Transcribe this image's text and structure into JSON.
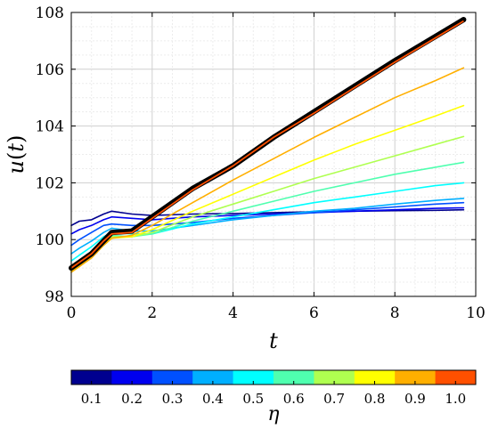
{
  "chart_data": {
    "type": "line",
    "xlabel": "t",
    "ylabel": "u(t)",
    "xlim": [
      0,
      10
    ],
    "ylim": [
      98,
      108
    ],
    "xticks": [
      0,
      2,
      4,
      6,
      8,
      10
    ],
    "yticks": [
      98,
      100,
      102,
      104,
      106,
      108
    ],
    "grid": true,
    "colorbar": {
      "label": "η",
      "ticks": [
        "0.1",
        "0.2",
        "0.3",
        "0.4",
        "0.5",
        "0.6",
        "0.7",
        "0.8",
        "0.9",
        "1.0"
      ],
      "colors": [
        "#00008f",
        "#0000ef",
        "#0050ff",
        "#00afff",
        "#00ffff",
        "#4fffaf",
        "#afff50",
        "#ffff00",
        "#ffaf00",
        "#ff5000"
      ],
      "placement": "bottom"
    },
    "series": [
      {
        "eta": 0.1,
        "color": "#00008f",
        "x": [
          0,
          0.2,
          0.5,
          0.8,
          1.0,
          1.5,
          2.0,
          3.0,
          4.0,
          5.0,
          6.0,
          7.0,
          8.0,
          9.0,
          9.7
        ],
        "y": [
          100.5,
          100.65,
          100.7,
          100.9,
          101.0,
          100.9,
          100.85,
          100.9,
          100.92,
          100.95,
          100.98,
          101.0,
          101.02,
          101.03,
          101.05
        ]
      },
      {
        "eta": 0.2,
        "color": "#0000ef",
        "x": [
          0,
          0.2,
          0.5,
          0.8,
          1.0,
          1.5,
          2.0,
          3.0,
          4.0,
          5.0,
          6.0,
          7.0,
          8.0,
          9.0,
          9.7
        ],
        "y": [
          100.2,
          100.35,
          100.5,
          100.7,
          100.8,
          100.75,
          100.7,
          100.8,
          100.85,
          100.9,
          100.95,
          101.0,
          101.05,
          101.1,
          101.12
        ]
      },
      {
        "eta": 0.3,
        "color": "#0050ff",
        "x": [
          0,
          0.2,
          0.5,
          0.8,
          1.0,
          1.5,
          2.0,
          3.0,
          4.0,
          5.0,
          6.0,
          7.0,
          8.0,
          9.0,
          9.7
        ],
        "y": [
          99.8,
          100.0,
          100.25,
          100.5,
          100.55,
          100.5,
          100.5,
          100.6,
          100.75,
          100.85,
          100.95,
          101.05,
          101.15,
          101.25,
          101.3
        ]
      },
      {
        "eta": 0.4,
        "color": "#00afff",
        "x": [
          0,
          0.2,
          0.5,
          0.8,
          1.0,
          1.5,
          2.0,
          3.0,
          4.0,
          5.0,
          6.0,
          7.0,
          8.0,
          9.0,
          9.7
        ],
        "y": [
          99.5,
          99.7,
          99.95,
          100.25,
          100.4,
          100.3,
          100.3,
          100.5,
          100.7,
          100.85,
          101.0,
          101.1,
          101.25,
          101.38,
          101.45
        ]
      },
      {
        "eta": 0.5,
        "color": "#00ffff",
        "x": [
          0,
          0.2,
          0.5,
          0.8,
          1.0,
          1.5,
          2.0,
          3.0,
          4.0,
          5.0,
          6.0,
          7.0,
          8.0,
          9.0,
          9.7
        ],
        "y": [
          99.25,
          99.45,
          99.75,
          100.1,
          100.25,
          100.2,
          100.2,
          100.55,
          100.8,
          101.05,
          101.3,
          101.5,
          101.7,
          101.9,
          102.0
        ]
      },
      {
        "eta": 0.6,
        "color": "#4fffaf",
        "x": [
          0,
          0.2,
          0.5,
          0.8,
          1.0,
          1.5,
          2.0,
          3.0,
          4.0,
          5.0,
          6.0,
          7.0,
          8.0,
          9.0,
          9.7
        ],
        "y": [
          99.05,
          99.25,
          99.55,
          99.95,
          100.15,
          100.1,
          100.2,
          100.65,
          101.0,
          101.35,
          101.7,
          102.0,
          102.3,
          102.55,
          102.72
        ]
      },
      {
        "eta": 0.7,
        "color": "#afff50",
        "x": [
          0,
          0.2,
          0.5,
          0.8,
          1.0,
          1.5,
          2.0,
          3.0,
          4.0,
          5.0,
          6.0,
          7.0,
          8.0,
          9.0,
          9.7
        ],
        "y": [
          98.95,
          99.15,
          99.45,
          99.85,
          100.1,
          100.1,
          100.25,
          100.8,
          101.25,
          101.7,
          102.15,
          102.55,
          102.95,
          103.35,
          103.63
        ]
      },
      {
        "eta": 0.8,
        "color": "#ffff00",
        "x": [
          0,
          0.2,
          0.5,
          0.8,
          1.0,
          1.5,
          2.0,
          3.0,
          4.0,
          5.0,
          6.0,
          7.0,
          8.0,
          9.0,
          9.7
        ],
        "y": [
          98.9,
          99.1,
          99.4,
          99.8,
          100.05,
          100.1,
          100.35,
          101.0,
          101.6,
          102.2,
          102.8,
          103.35,
          103.85,
          104.35,
          104.72
        ]
      },
      {
        "eta": 0.9,
        "color": "#ffaf00",
        "x": [
          0,
          0.2,
          0.5,
          0.8,
          1.0,
          1.5,
          2.0,
          3.0,
          4.0,
          5.0,
          6.0,
          7.0,
          8.0,
          9.0,
          9.7
        ],
        "y": [
          98.85,
          99.05,
          99.35,
          99.8,
          100.05,
          100.15,
          100.5,
          101.3,
          102.1,
          102.85,
          103.6,
          104.3,
          105.0,
          105.6,
          106.05
        ]
      },
      {
        "eta": 1.0,
        "color": "#ff5000",
        "x": [
          0,
          0.2,
          0.5,
          0.8,
          1.0,
          1.5,
          2.0,
          3.0,
          4.0,
          5.0,
          6.0,
          7.0,
          8.0,
          9.0,
          9.7
        ],
        "y": [
          99.0,
          99.2,
          99.5,
          99.95,
          100.2,
          100.25,
          100.75,
          101.75,
          102.6,
          103.6,
          104.45,
          105.35,
          106.25,
          107.1,
          107.7
        ]
      },
      {
        "eta": null,
        "color": "#000000",
        "x": [
          0,
          0.2,
          0.5,
          0.8,
          1.0,
          1.5,
          2.0,
          3.0,
          4.0,
          5.0,
          6.0,
          7.0,
          8.0,
          9.0,
          9.7
        ],
        "y": [
          99.0,
          99.2,
          99.5,
          99.95,
          100.25,
          100.3,
          100.8,
          101.8,
          102.6,
          103.6,
          104.5,
          105.4,
          106.3,
          107.15,
          107.75
        ]
      }
    ]
  }
}
